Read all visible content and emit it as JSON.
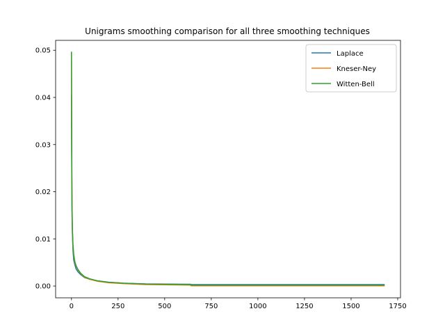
{
  "chart_data": {
    "type": "line",
    "title": "Unigrams smoothing comparison for all three smoothing techniques",
    "xlabel": "",
    "ylabel": "",
    "xlim": [
      -85,
      1765
    ],
    "ylim": [
      -0.0025,
      0.0521
    ],
    "xticks": [
      0,
      250,
      500,
      750,
      1000,
      1250,
      1500,
      1750
    ],
    "xtick_labels": [
      "0",
      "250",
      "500",
      "750",
      "1000",
      "1250",
      "1500",
      "1750"
    ],
    "yticks": [
      0.0,
      0.01,
      0.02,
      0.03,
      0.04,
      0.05
    ],
    "ytick_labels": [
      "0.00",
      "0.01",
      "0.02",
      "0.03",
      "0.04",
      "0.05"
    ],
    "legend_position": "top-right",
    "grid": false,
    "series": [
      {
        "name": "Laplace",
        "color": "#1f77b4",
        "x": [
          0,
          1,
          2,
          3,
          5,
          8,
          12,
          18,
          25,
          35,
          50,
          70,
          100,
          140,
          200,
          280,
          400,
          640,
          641,
          1000,
          1680
        ],
        "y": [
          0.0405,
          0.029,
          0.021,
          0.015,
          0.011,
          0.0075,
          0.0055,
          0.0045,
          0.0036,
          0.003,
          0.0024,
          0.0018,
          0.0014,
          0.0011,
          0.0008,
          0.0006,
          0.00045,
          0.00038,
          0.0003,
          0.0003,
          0.0003
        ]
      },
      {
        "name": "Kneser-Ney",
        "color": "#ff7f0e",
        "x": [
          0,
          1,
          2,
          3,
          5,
          8,
          12,
          18,
          25,
          35,
          50,
          70,
          100,
          140,
          200,
          280,
          400,
          640,
          641,
          1000,
          1680
        ],
        "y": [
          0.0495,
          0.034,
          0.024,
          0.017,
          0.012,
          0.0085,
          0.0065,
          0.005,
          0.0042,
          0.0034,
          0.0026,
          0.0019,
          0.0014,
          0.001,
          0.0007,
          0.0005,
          0.0003,
          0.0002,
          5e-05,
          5e-05,
          5e-05
        ]
      },
      {
        "name": "Witten-Bell",
        "color": "#2ca02c",
        "x": [
          0,
          1,
          2,
          3,
          5,
          8,
          12,
          18,
          25,
          35,
          50,
          70,
          100,
          140,
          200,
          280,
          400,
          640,
          641,
          1000,
          1680
        ],
        "y": [
          0.0497,
          0.034,
          0.024,
          0.017,
          0.0123,
          0.0088,
          0.0068,
          0.0052,
          0.0043,
          0.0035,
          0.0027,
          0.002,
          0.0015,
          0.0011,
          0.0008,
          0.0006,
          0.00042,
          0.0003,
          0.00018,
          0.00018,
          0.00018
        ]
      }
    ]
  }
}
